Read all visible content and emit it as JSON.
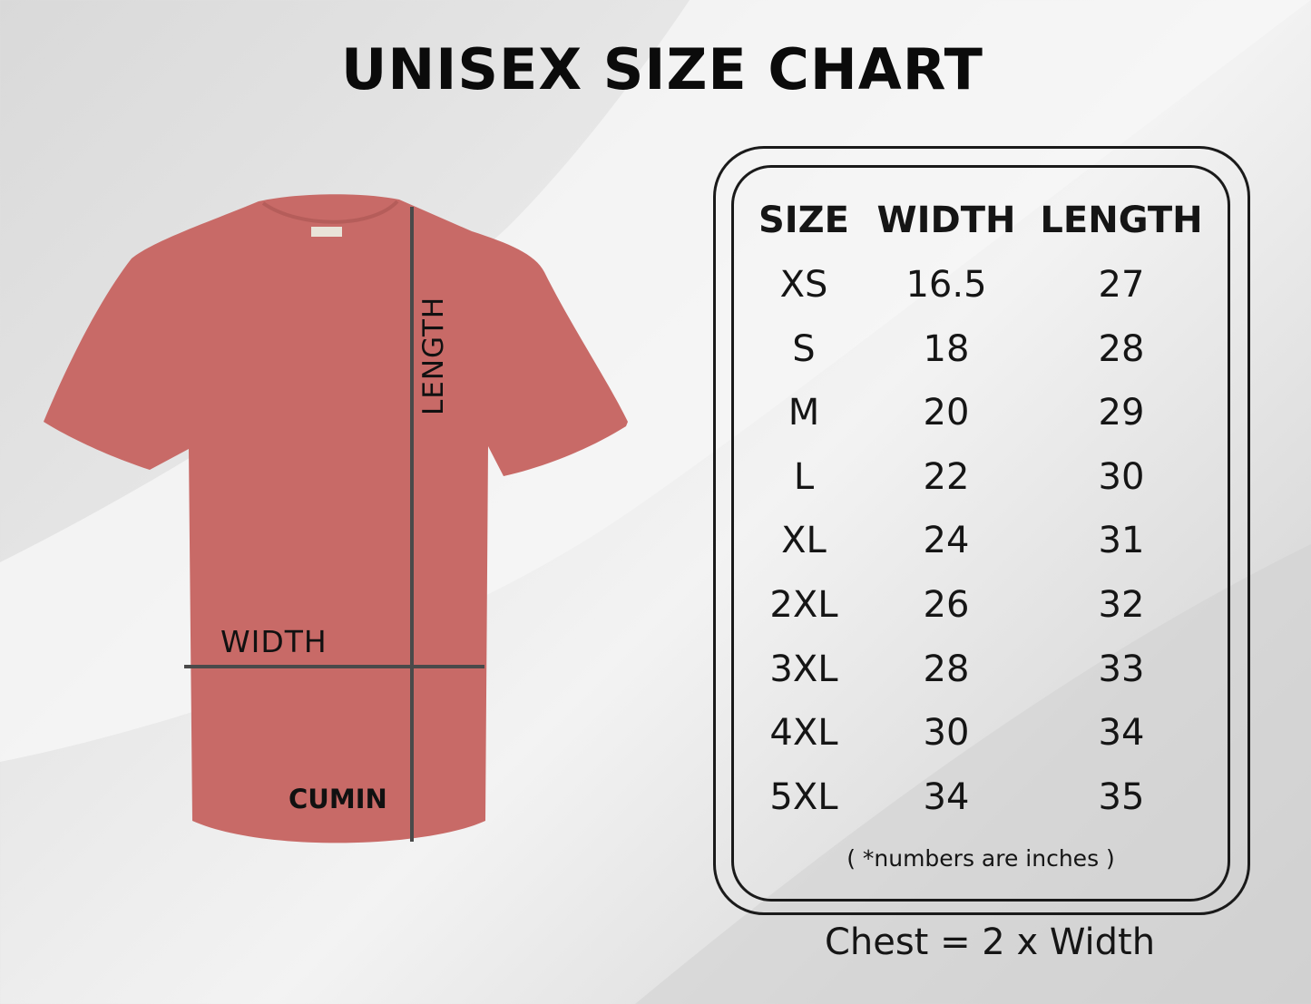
{
  "title": "UNISEX SIZE CHART",
  "shirt": {
    "color_name": "CUMIN",
    "color_hex": "#c86a67",
    "length_label": "LENGTH",
    "width_label": "WIDTH"
  },
  "table": {
    "headers": [
      "SIZE",
      "WIDTH",
      "LENGTH"
    ],
    "rows": [
      [
        "XS",
        "16.5",
        "27"
      ],
      [
        "S",
        "18",
        "28"
      ],
      [
        "M",
        "20",
        "29"
      ],
      [
        "L",
        "22",
        "30"
      ],
      [
        "XL",
        "24",
        "31"
      ],
      [
        "2XL",
        "26",
        "32"
      ],
      [
        "3XL",
        "28",
        "33"
      ],
      [
        "4XL",
        "30",
        "34"
      ],
      [
        "5XL",
        "34",
        "35"
      ]
    ],
    "note": "( *numbers are inches )"
  },
  "chest_formula": "Chest = 2 x Width"
}
